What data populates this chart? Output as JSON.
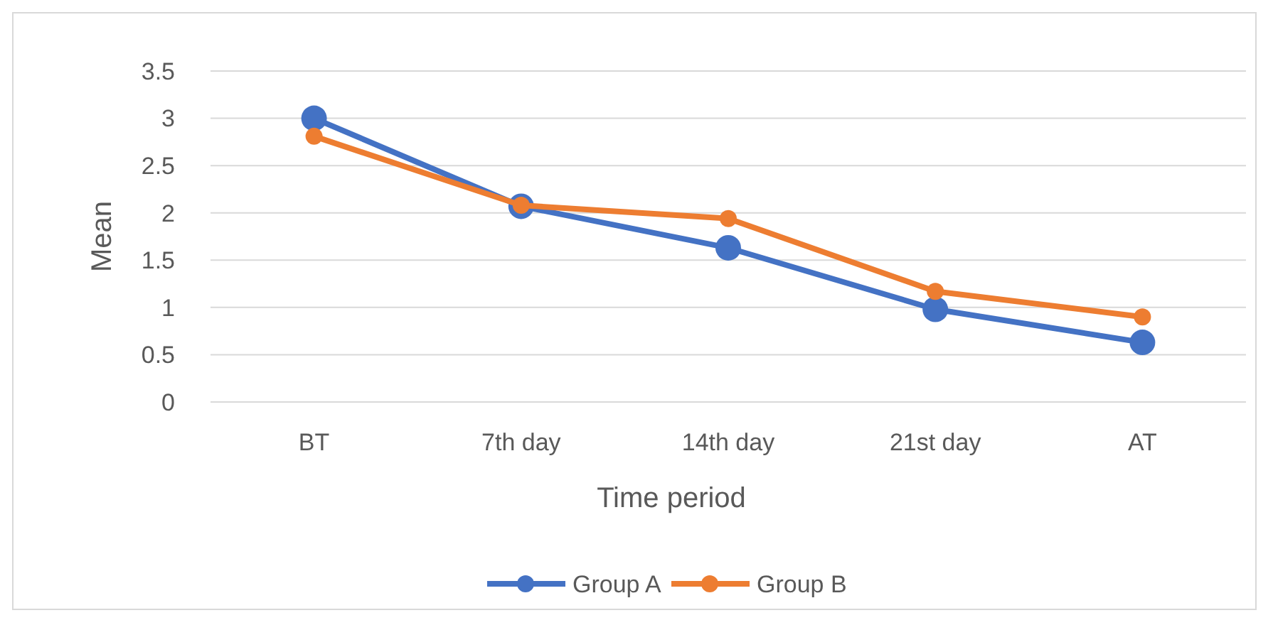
{
  "chart_data": {
    "type": "line",
    "xlabel": "Time period",
    "ylabel": "Mean",
    "categories": [
      "BT",
      "7th day",
      "14th day",
      "21st day",
      "AT"
    ],
    "series": [
      {
        "name": "Group A",
        "color": "#4472c4",
        "values": [
          3.0,
          2.07,
          1.63,
          0.98,
          0.63
        ]
      },
      {
        "name": "Group B",
        "color": "#ed7d31",
        "values": [
          2.81,
          2.08,
          1.94,
          1.17,
          0.9
        ]
      }
    ],
    "ylim": [
      0,
      3.5
    ],
    "yticks": [
      0,
      0.5,
      1,
      1.5,
      2,
      2.5,
      3,
      3.5
    ],
    "grid": "y",
    "legend": "bottom",
    "marker": "circle",
    "line_style": "solid"
  }
}
